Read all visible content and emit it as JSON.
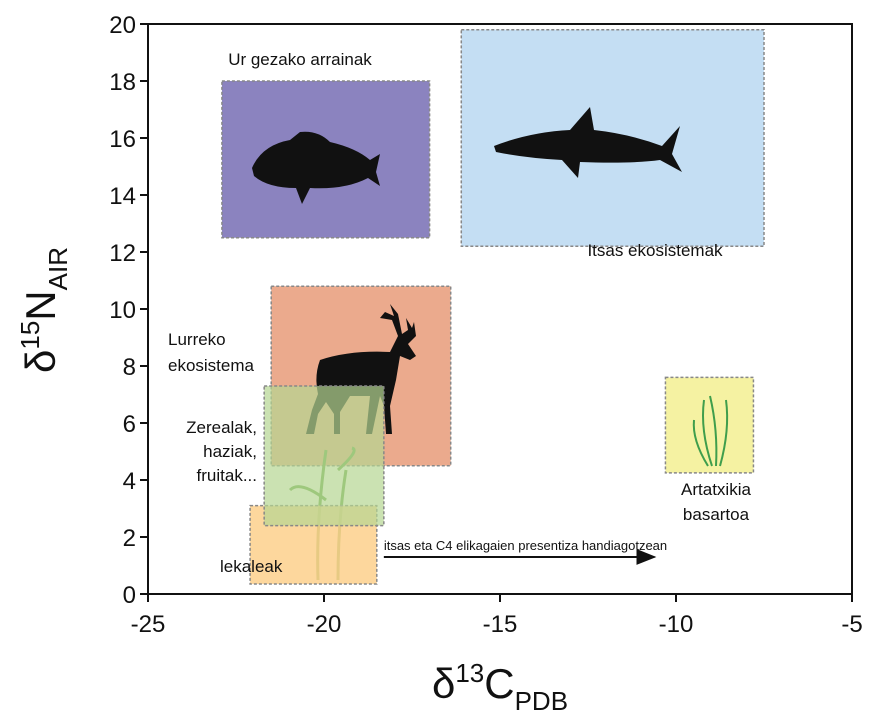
{
  "chart_data": {
    "type": "region",
    "x_label": {
      "symbol": "δ",
      "sup": "13",
      "main": "C",
      "sub": "PDB"
    },
    "y_label": {
      "symbol": "δ",
      "sup": "15",
      "main": "N",
      "sub": "AIR"
    },
    "xlim": [
      -25,
      -5
    ],
    "xticks": [
      -25,
      -20,
      -15,
      -10,
      -5
    ],
    "ylim": [
      0,
      20
    ],
    "yticks": [
      0,
      2,
      4,
      6,
      8,
      10,
      12,
      14,
      16,
      18,
      20
    ],
    "series": [
      {
        "name": [
          "Itsas ekosistemak"
        ],
        "color": "#c4def3",
        "x": [
          -16.1,
          -7.5
        ],
        "y": [
          12.2,
          19.8
        ]
      },
      {
        "name": [
          "Ur gezako arrainak"
        ],
        "color": "#8b83bf",
        "x": [
          -22.9,
          -17.0
        ],
        "y": [
          12.5,
          18.0
        ]
      },
      {
        "name": [
          "Lurreko",
          "ekosistema"
        ],
        "color": "#e9a181",
        "x": [
          -21.5,
          -16.4
        ],
        "y": [
          4.5,
          10.8
        ]
      },
      {
        "name": [
          "Zerealak,",
          "haziak,",
          "fruitak..."
        ],
        "color": "#b5d592",
        "x": [
          -21.7,
          -18.3
        ],
        "y": [
          2.4,
          7.3
        ]
      },
      {
        "name": [
          "lekaleak"
        ],
        "color": "#fdd08c",
        "x": [
          -22.1,
          -18.5
        ],
        "y": [
          0.35,
          3.1
        ]
      },
      {
        "name": [
          "Artatxikia",
          "basartoa"
        ],
        "color": "#f5f2a2",
        "x": [
          -10.3,
          -7.8
        ],
        "y": [
          4.25,
          7.6
        ]
      }
    ],
    "arrow": {
      "text": "itsas eta C4 elikagaien presentiza handiagotzean",
      "x": [
        -18.3,
        -10.5
      ],
      "y": 1.3
    }
  }
}
